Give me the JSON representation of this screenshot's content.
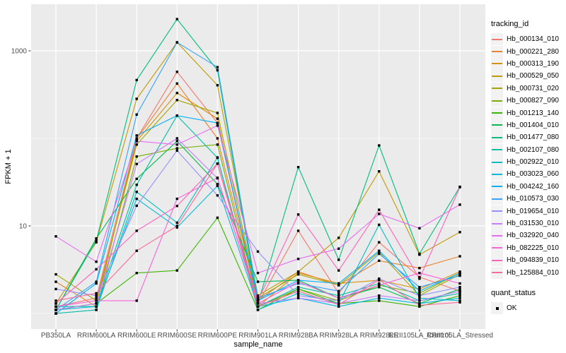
{
  "chart_data": {
    "type": "line",
    "title": "",
    "xlabel": "sample_name",
    "ylabel": "FPKM + 1",
    "legend_title": "tracking_id",
    "y_scale": "log10",
    "grid": true,
    "legend_position": "right",
    "panel_bg": "#EBEBEB",
    "grid_color": "#FFFFFF",
    "tick_color": "#333333",
    "tick_label_color": "#4D4D4D",
    "point_style": {
      "shape": "square",
      "color": "#000000",
      "size": 3.4
    },
    "y_ticks": [
      {
        "label": "10",
        "value": 10
      },
      {
        "label": "1000",
        "value": 1000
      }
    ],
    "y_minor_gridlines": [
      1,
      100
    ],
    "ylim": [
      0.67,
      3400
    ],
    "categories": [
      "PB350LA",
      "RRIM600LA",
      "RRIM600LE",
      "RRIM600SE",
      "RRIM600PE",
      "RRIM901LA",
      "RRIM928BA",
      "RRIM928LA",
      "RRIM928LE",
      "RRII105LA_Control",
      "RRII105LA_Stressed"
    ],
    "series": [
      {
        "name": "Hb_000134_010",
        "color": "#F8766D",
        "values": [
          1.2,
          1.5,
          100,
          576,
          150,
          1.3,
          8.8,
          1.7,
          6.5,
          2.6,
          1.8
        ]
      },
      {
        "name": "Hb_000221_280",
        "color": "#EA8331",
        "values": [
          2.3,
          1.2,
          99,
          423,
          100,
          1.4,
          3.0,
          2.1,
          4.0,
          3.3,
          4.5
        ]
      },
      {
        "name": "Hb_000313_190",
        "color": "#D89000",
        "values": [
          1.1,
          1.3,
          93,
          330,
          168,
          1.2,
          2.9,
          2.2,
          2.4,
          1.9,
          3.0
        ]
      },
      {
        "name": "Hb_000529_050",
        "color": "#C09B00",
        "values": [
          1.3,
          6.5,
          283,
          1250,
          405,
          1.6,
          3.0,
          7.3,
          42,
          4.7,
          8.5
        ]
      },
      {
        "name": "Hb_000731_020",
        "color": "#A3A500",
        "values": [
          2.8,
          1.4,
          85,
          274,
          195,
          1.5,
          2.8,
          2.1,
          5.0,
          1.6,
          2.8
        ]
      },
      {
        "name": "Hb_000827_090",
        "color": "#7CAE00",
        "values": [
          1.0,
          1.1,
          62,
          77,
          85,
          1.2,
          1.9,
          1.4,
          2.1,
          1.7,
          2.9
        ]
      },
      {
        "name": "Hb_001213_140",
        "color": "#39B600",
        "values": [
          1.1,
          1.3,
          2.9,
          3.1,
          12.4,
          1.1,
          1.9,
          1.3,
          1.4,
          1.2,
          1.6
        ]
      },
      {
        "name": "Hb_001404_010",
        "color": "#00BB4E",
        "values": [
          1.1,
          7.2,
          34.5,
          93,
          30,
          2.3,
          2.4,
          1.5,
          2.0,
          1.3,
          1.9
        ]
      },
      {
        "name": "Hb_001477_080",
        "color": "#00BF7D",
        "values": [
          1.1,
          6.8,
          464,
          2300,
          600,
          1.3,
          47,
          4.1,
          83,
          4.8,
          28
        ]
      },
      {
        "name": "Hb_002107_080",
        "color": "#00C1A3",
        "values": [
          1.2,
          1.2,
          29.5,
          182,
          60,
          1.2,
          2.0,
          1.6,
          2.2,
          1.4,
          1.7
        ]
      },
      {
        "name": "Hb_002922_010",
        "color": "#00BFC4",
        "values": [
          1.0,
          1.1,
          24.5,
          10.9,
          60.6,
          1.1,
          1.7,
          1.3,
          10.3,
          1.5,
          1.4
        ]
      },
      {
        "name": "Hb_003023_060",
        "color": "#00BAE0",
        "values": [
          1.1,
          1.2,
          20.4,
          9.6,
          28.7,
          1.2,
          1.5,
          1.2,
          1.5,
          1.3,
          1.5
        ]
      },
      {
        "name": "Hb_004242_160",
        "color": "#00B0F6",
        "values": [
          1.0,
          2.2,
          108,
          182,
          150,
          1.4,
          2.4,
          2.2,
          5.2,
          1.8,
          2.9
        ]
      },
      {
        "name": "Hb_010573_030",
        "color": "#35A2FF",
        "values": [
          1.1,
          2.3,
          187,
          1250,
          650,
          1.5,
          2.2,
          1.8,
          4.8,
          2.0,
          2.7
        ]
      },
      {
        "name": "Hb_019654_010",
        "color": "#9590FF",
        "values": [
          1.9,
          1.6,
          17,
          72.5,
          22.3,
          5.1,
          1.6,
          1.4,
          2.5,
          1.6,
          2.0
        ]
      },
      {
        "name": "Hb_031530_010",
        "color": "#C77CFF",
        "values": [
          1.1,
          1.3,
          51,
          100,
          35,
          1.3,
          1.5,
          1.3,
          1.6,
          1.4,
          1.8
        ]
      },
      {
        "name": "Hb_032920_040",
        "color": "#E76BF3",
        "values": [
          7.6,
          3.9,
          93,
          85,
          140,
          2.9,
          4.2,
          5.5,
          13.7,
          9.4,
          17.5
        ]
      },
      {
        "name": "Hb_082225_010",
        "color": "#FA62DB",
        "values": [
          1.2,
          1.4,
          1.4,
          20.4,
          35.5,
          1.3,
          2.3,
          1.5,
          2.1,
          2.9,
          2.2
        ]
      },
      {
        "name": "Hb_094839_010",
        "color": "#FF62BC",
        "values": [
          1.3,
          3.2,
          8.8,
          16.9,
          51.5,
          1.4,
          13.5,
          3.1,
          15.3,
          2.5,
          27.7
        ]
      },
      {
        "name": "Hb_125884_010",
        "color": "#FF6A98",
        "values": [
          1.4,
          1.7,
          5.2,
          10,
          51.5,
          1.2,
          1.8,
          1.26,
          2.42,
          1.24,
          1.34
        ]
      }
    ],
    "quant_legend": {
      "title": "quant_status",
      "items": [
        {
          "label": "OK",
          "shape": "square",
          "color": "#000000"
        }
      ]
    }
  }
}
